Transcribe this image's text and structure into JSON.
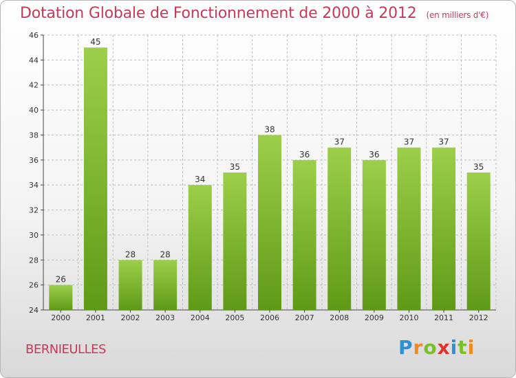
{
  "header": {
    "title": "Dotation Globale de Fonctionnement de 2000 à 2012",
    "subtitle": "(en milliers d'€)"
  },
  "footer": {
    "city": "BERNIEULLES",
    "logo": {
      "p": "P",
      "r": "r",
      "o": "o",
      "x": "x",
      "i1": "i",
      "t": "t",
      "i2": "i"
    }
  },
  "chart_data": {
    "type": "bar",
    "title": "Dotation Globale de Fonctionnement de 2000 à 2012",
    "subtitle": "(en milliers d'€)",
    "categories": [
      "2000",
      "2001",
      "2002",
      "2003",
      "2004",
      "2005",
      "2006",
      "2007",
      "2008",
      "2009",
      "2010",
      "2011",
      "2012"
    ],
    "values": [
      26,
      45,
      28,
      28,
      34,
      35,
      38,
      36,
      37,
      36,
      37,
      37,
      35
    ],
    "ylim": [
      24,
      46
    ],
    "yticks": [
      24,
      26,
      28,
      30,
      32,
      34,
      36,
      38,
      40,
      42,
      44,
      46
    ],
    "xlabel": "",
    "ylabel": "",
    "grid": true,
    "colors": {
      "bar_top": "#9ccf4a",
      "bar_bottom": "#5f9a16",
      "grid": "#bdbdbd",
      "axis": "#444444"
    }
  }
}
